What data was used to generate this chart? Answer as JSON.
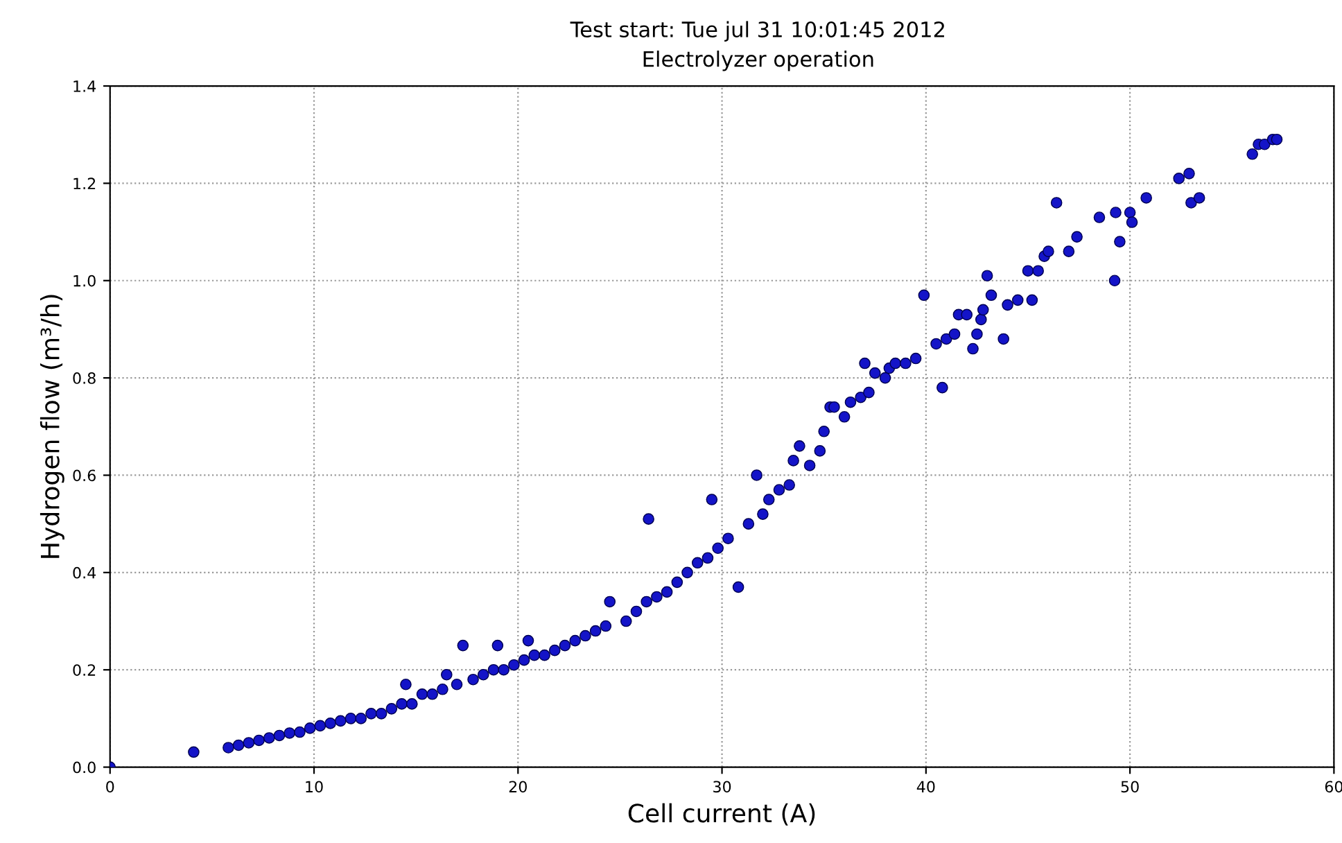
{
  "chart_data": {
    "type": "scatter",
    "title": "Test start: Tue jul 31 10:01:45 2012",
    "subtitle": "Electrolyzer operation",
    "xlabel": "Cell current (A)",
    "ylabel": "Hydrogen flow (m³/h)",
    "xlim": [
      0,
      60
    ],
    "ylim": [
      0,
      1.4
    ],
    "xticks": [
      0,
      10,
      20,
      30,
      40,
      50,
      60
    ],
    "yticks": [
      {
        "value": 0,
        "label": "0.0"
      },
      {
        "value": 0.2,
        "label": "0.2"
      },
      {
        "value": 0.4,
        "label": "0.4"
      },
      {
        "value": 0.6,
        "label": "0.6"
      },
      {
        "value": 0.8,
        "label": "0.8"
      },
      {
        "value": 1.0,
        "label": "1.0"
      },
      {
        "value": 1.2,
        "label": "1.2"
      },
      {
        "value": 1.4,
        "label": "1.4"
      }
    ],
    "grid": true,
    "marker": "circle",
    "line_style": "dotted",
    "series": [
      {
        "color": "#1414c8",
        "x": [
          0,
          4.1,
          5.8,
          6.3,
          6.8,
          7.3,
          7.8,
          8.3,
          8.8,
          9.3,
          9.8,
          10.3,
          10.8,
          11.3,
          11.8,
          12.3,
          12.8,
          13.3,
          13.8,
          14.3,
          14.5,
          14.8,
          15.3,
          15.8,
          16.3,
          16.5,
          17,
          17.3,
          17.8,
          18.3,
          18.8,
          19,
          19.3,
          19.8,
          20.3,
          20.5,
          20.8,
          21.3,
          21.8,
          22.3,
          22.8,
          23.3,
          23.8,
          24.3,
          24.5,
          25.3,
          25.8,
          26.3,
          26.4,
          26.8,
          27.3,
          27.8,
          28.3,
          28.8,
          29.3,
          29.5,
          29.8,
          30.3,
          30.8,
          31.3,
          31.7,
          32,
          32.3,
          32.8,
          33.3,
          33.5,
          33.8,
          34.3,
          34.8,
          35,
          35.3,
          35.5,
          36,
          36.3,
          36.8,
          37,
          37.2,
          37.5,
          38,
          38.2,
          38.5,
          39,
          39.5,
          39.9,
          40.5,
          40.8,
          41,
          41.4,
          41.6,
          42,
          42.3,
          42.5,
          42.7,
          42.8,
          43,
          43.2,
          43.8,
          44,
          44.5,
          45,
          45.2,
          45.5,
          45.8,
          46,
          46.4,
          47,
          47.4,
          48.5,
          49.25,
          49.3,
          49.5,
          50,
          50.1,
          50.8,
          52.4,
          52.9,
          53,
          53.4,
          56,
          56.3,
          56.6,
          57,
          57.2
        ],
        "values": [
          0.0,
          0.031,
          0.04,
          0.045,
          0.05,
          0.055,
          0.06,
          0.065,
          0.07,
          0.072,
          0.08,
          0.085,
          0.09,
          0.095,
          0.1,
          0.1,
          0.11,
          0.11,
          0.12,
          0.13,
          0.17,
          0.13,
          0.15,
          0.15,
          0.16,
          0.19,
          0.17,
          0.25,
          0.18,
          0.19,
          0.2,
          0.25,
          0.2,
          0.21,
          0.22,
          0.26,
          0.23,
          0.23,
          0.24,
          0.25,
          0.26,
          0.27,
          0.28,
          0.29,
          0.34,
          0.3,
          0.32,
          0.34,
          0.51,
          0.35,
          0.36,
          0.38,
          0.4,
          0.42,
          0.43,
          0.55,
          0.45,
          0.47,
          0.37,
          0.5,
          0.6,
          0.52,
          0.55,
          0.57,
          0.58,
          0.63,
          0.66,
          0.62,
          0.65,
          0.69,
          0.74,
          0.74,
          0.72,
          0.75,
          0.76,
          0.83,
          0.77,
          0.81,
          0.8,
          0.82,
          0.83,
          0.83,
          0.84,
          0.97,
          0.87,
          0.78,
          0.88,
          0.89,
          0.93,
          0.93,
          0.86,
          0.89,
          0.92,
          0.94,
          1.01,
          0.97,
          0.88,
          0.95,
          0.96,
          1.02,
          0.96,
          1.02,
          1.05,
          1.06,
          1.16,
          1.06,
          1.09,
          1.13,
          1.0,
          1.14,
          1.08,
          1.14,
          1.12,
          1.17,
          1.21,
          1.22,
          1.16,
          1.17,
          1.26,
          1.28,
          1.28,
          1.29,
          1.29
        ]
      }
    ]
  }
}
